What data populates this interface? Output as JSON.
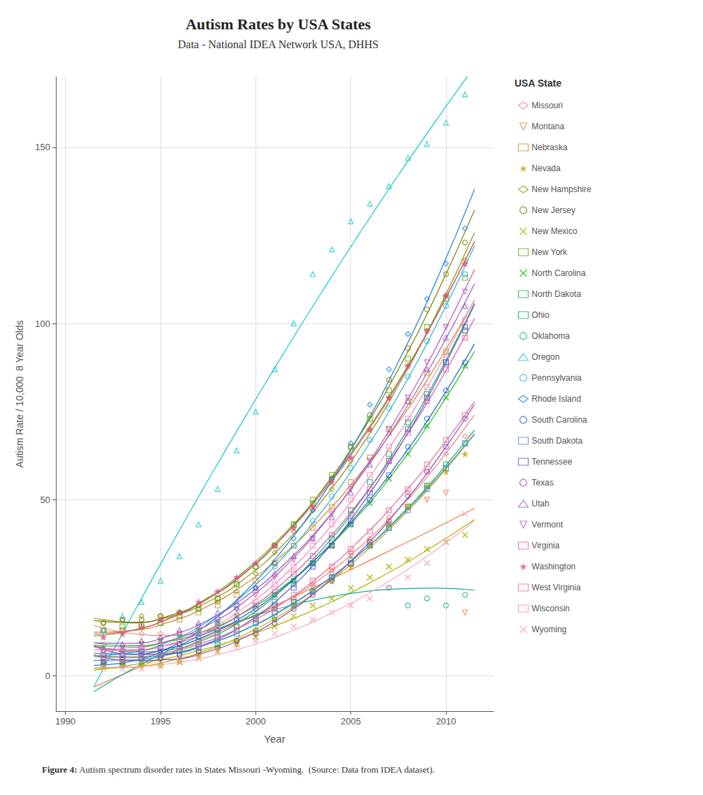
{
  "chart_data": {
    "type": "scatter",
    "title": "Autism Rates by USA States",
    "subtitle": "Data - National IDEA Network USA, DHHS",
    "caption": "Figure 4: Autism spectrum disorder rates in States Missouri -Wyoming.  (Source: Data from IDEA dataset).",
    "xlabel": "Year",
    "ylabel": "Autism Rate / 10,000  8 Year Olds",
    "legend_title": "USA State",
    "legend": "right",
    "grid": true,
    "xlim": [
      1989.5,
      2012.5
    ],
    "xticks": [
      1990,
      1995,
      2000,
      2005,
      2010
    ],
    "ylim": [
      -10,
      170
    ],
    "yticks": [
      0,
      50,
      100,
      150
    ],
    "x": [
      1992,
      1993,
      1994,
      1995,
      1996,
      1997,
      1998,
      1999,
      2000,
      2001,
      2002,
      2003,
      2004,
      2005,
      2006,
      2007,
      2008,
      2009,
      2010,
      2011
    ],
    "fit_x": [
      1991.5,
      1993.5,
      1995.5,
      1997.5,
      1999.5,
      2001.5,
      2003.5,
      2005.5,
      2007.5,
      2009.5,
      2011.5
    ],
    "series": [
      {
        "name": "Missouri",
        "color": "#f08080",
        "marker": "diamond",
        "values": [
          13,
          13,
          12,
          12,
          12,
          13,
          13,
          14,
          16,
          19,
          22,
          26,
          30,
          35,
          39,
          45,
          52,
          58,
          63,
          68
        ],
        "fit_values": [
          14.38,
          12.0,
          11.48,
          12.82,
          16.0,
          21.04,
          27.94,
          36.69,
          47.29,
          59.75,
          74.06
        ]
      },
      {
        "name": "Montana",
        "color": "#f07840",
        "marker": "triangle-down",
        "values": [
          4,
          4,
          4,
          5,
          5,
          6,
          7,
          9,
          12,
          16,
          21,
          25,
          29,
          34,
          38,
          43,
          48,
          50,
          52,
          18
        ],
        "fit_values": [
          -3.13,
          1.56,
          6.33,
          11.18,
          16.12,
          21.15,
          26.26,
          31.45,
          36.73,
          42.1,
          47.55
        ]
      },
      {
        "name": "Nebraska",
        "color": "#d08828",
        "marker": "square",
        "values": [
          13,
          13,
          14,
          15,
          16,
          18,
          20,
          23,
          27,
          32,
          37,
          42,
          48,
          55,
          62,
          70,
          78,
          86,
          92,
          98
        ],
        "fit_values": [
          12.38,
          12.88,
          15.36,
          19.82,
          26.27,
          34.71,
          45.12,
          57.52,
          71.9,
          88.27,
          106.62
        ]
      },
      {
        "name": "Nevada",
        "color": "#c8a800",
        "marker": "star",
        "values": [
          3,
          3,
          3,
          3,
          4,
          6,
          8,
          10,
          13,
          16,
          20,
          24,
          27,
          31,
          37,
          43,
          48,
          54,
          58,
          63
        ],
        "fit_values": [
          2.12,
          2.49,
          4.26,
          7.41,
          11.96,
          17.91,
          25.25,
          33.98,
          44.1,
          55.62,
          68.53
        ]
      },
      {
        "name": "New Hampshire",
        "color": "#909010",
        "marker": "diamond",
        "values": [
          15,
          16,
          17,
          17,
          18,
          19,
          21,
          24,
          29,
          35,
          41,
          47,
          53,
          61,
          70,
          79,
          88,
          98,
          108,
          118
        ],
        "fit_values": [
          16.42,
          15.27,
          16.81,
          21.03,
          27.94,
          37.54,
          49.82,
          64.79,
          82.44,
          102.78,
          125.8
        ]
      },
      {
        "name": "New Jersey",
        "color": "#787800",
        "marker": "circle",
        "values": [
          15,
          16,
          16,
          17,
          18,
          20,
          22,
          26,
          31,
          37,
          43,
          49,
          56,
          65,
          74,
          84,
          93,
          104,
          114,
          123
        ],
        "fit_values": [
          15.69,
          15.04,
          17.13,
          21.95,
          29.51,
          39.79,
          52.81,
          68.56,
          87.05,
          108.26,
          132.21
        ]
      },
      {
        "name": "New Mexico",
        "color": "#a8b800",
        "marker": "x",
        "values": [
          4,
          4,
          4,
          4,
          4,
          5,
          7,
          9,
          11,
          14,
          17,
          20,
          22,
          25,
          28,
          31,
          33,
          36,
          38,
          40
        ],
        "fit_values": [
          1.63,
          3.1,
          5.18,
          7.9,
          11.24,
          15.2,
          19.79,
          25.01,
          30.85,
          37.31,
          44.4
        ]
      },
      {
        "name": "New York",
        "color": "#58b010",
        "marker": "square",
        "values": [
          13,
          14,
          14,
          15,
          17,
          19,
          22,
          26,
          31,
          37,
          43,
          50,
          57,
          65,
          73,
          81,
          90,
          99,
          107,
          113
        ],
        "fit_values": [
          11.37,
          12.84,
          16.48,
          22.27,
          30.22,
          40.33,
          52.6,
          67.02,
          83.61,
          102.35,
          123.25
        ]
      },
      {
        "name": "North Carolina",
        "color": "#18c018",
        "marker": "x",
        "values": [
          8,
          8,
          9,
          10,
          11,
          13,
          15,
          17,
          20,
          23,
          27,
          32,
          37,
          43,
          49,
          56,
          63,
          71,
          79,
          88
        ],
        "fit_values": [
          9.38,
          8.6,
          9.83,
          13.07,
          18.32,
          25.58,
          34.86,
          46.15,
          59.46,
          74.78,
          92.1
        ]
      },
      {
        "name": "North Dakota",
        "color": "#18b048",
        "marker": "square",
        "values": [
          5,
          5,
          6,
          6,
          7,
          8,
          9,
          12,
          15,
          18,
          21,
          24,
          28,
          32,
          37,
          42,
          48,
          54,
          60,
          66
        ],
        "fit_values": [
          5.46,
          5.17,
          6.37,
          9.07,
          13.26,
          18.94,
          26.12,
          34.79,
          44.96,
          56.62,
          69.78
        ]
      },
      {
        "name": "Ohio",
        "color": "#10a868",
        "marker": "square",
        "values": [
          7,
          7,
          8,
          8,
          9,
          10,
          12,
          14,
          17,
          21,
          26,
          32,
          39,
          47,
          55,
          63,
          72,
          80,
          89,
          98
        ],
        "fit_values": [
          8.74,
          6.81,
          7.47,
          10.72,
          16.54,
          24.96,
          35.96,
          49.54,
          65.7,
          84.46,
          105.79
        ]
      },
      {
        "name": "Oklahoma",
        "color": "#10a898",
        "marker": "circle",
        "values": [
          3,
          3,
          4,
          5,
          6,
          7,
          8,
          10,
          13,
          16,
          20,
          24,
          28,
          33,
          37,
          25,
          20,
          22,
          20,
          23
        ],
        "fit_values": [
          -4.46,
          1.88,
          7.45,
          12.25,
          16.28,
          19.54,
          22.04,
          23.77,
          24.73,
          24.92,
          24.34
        ]
      },
      {
        "name": "Oregon",
        "color": "#10c8c8",
        "marker": "triangle-up",
        "values": [
          13,
          17,
          21,
          27,
          34,
          43,
          53,
          64,
          75,
          87,
          100,
          114,
          121,
          129,
          134,
          139,
          147,
          151,
          157,
          165
        ],
        "fit_values": [
          -3.02,
          17.06,
          36.58,
          55.56,
          73.98,
          91.85,
          109.16,
          125.93,
          142.14,
          157.8,
          172.9
        ]
      },
      {
        "name": "Pennsylvania",
        "color": "#28b0d0",
        "marker": "circle",
        "values": [
          6,
          7,
          8,
          9,
          11,
          13,
          16,
          20,
          25,
          31,
          37,
          44,
          51,
          59,
          67,
          76,
          85,
          95,
          105,
          114
        ],
        "fit_values": [
          5.77,
          6.64,
          9.9,
          15.54,
          23.58,
          34.01,
          46.83,
          62.05,
          79.65,
          99.64,
          122.03
        ]
      },
      {
        "name": "Rhode Island",
        "color": "#1878e0",
        "marker": "diamond",
        "values": [
          4,
          5,
          6,
          7,
          9,
          12,
          15,
          19,
          25,
          32,
          39,
          47,
          56,
          66,
          77,
          87,
          97,
          107,
          117,
          127
        ],
        "fit_values": [
          3.02,
          4.19,
          8.11,
          14.77,
          24.17,
          36.31,
          51.19,
          68.81,
          89.17,
          112.27,
          138.11
        ]
      },
      {
        "name": "South Carolina",
        "color": "#2858d8",
        "marker": "circle",
        "values": [
          5,
          6,
          7,
          8,
          9,
          11,
          13,
          16,
          19,
          23,
          27,
          32,
          37,
          43,
          50,
          57,
          65,
          73,
          81,
          89
        ],
        "fit_values": [
          6.45,
          6.17,
          7.9,
          11.65,
          17.41,
          25.18,
          34.97,
          46.77,
          60.58,
          76.41,
          94.25
        ]
      },
      {
        "name": "South Dakota",
        "color": "#4888e8",
        "marker": "square",
        "values": [
          4,
          4,
          5,
          6,
          7,
          8,
          10,
          12,
          15,
          18,
          21,
          24,
          28,
          32,
          37,
          42,
          47,
          53,
          59,
          66
        ],
        "fit_values": [
          4.41,
          4.55,
          6.09,
          9.03,
          13.36,
          19.09,
          26.22,
          34.75,
          44.67,
          55.99,
          68.72
        ]
      },
      {
        "name": "Tennessee",
        "color": "#5858c8",
        "marker": "square",
        "values": [
          6,
          6,
          7,
          7,
          8,
          9,
          11,
          13,
          16,
          20,
          25,
          31,
          37,
          44,
          52,
          61,
          70,
          79,
          89,
          99
        ],
        "fit_values": [
          8.5,
          6.07,
          6.34,
          9.3,
          14.95,
          23.3,
          34.34,
          48.08,
          64.52,
          83.64,
          105.47
        ]
      },
      {
        "name": "Texas",
        "color": "#8848b0",
        "marker": "circle",
        "values": [
          4,
          4,
          5,
          5,
          6,
          7,
          8,
          10,
          12,
          15,
          19,
          23,
          27,
          32,
          38,
          44,
          51,
          58,
          65,
          73
        ],
        "fit_values": [
          5.92,
          4.31,
          4.64,
          6.9,
          11.11,
          17.25,
          25.33,
          35.34,
          47.3,
          61.19,
          77.02
        ]
      },
      {
        "name": "Utah",
        "color": "#9858c0",
        "marker": "triangle-up",
        "values": [
          8,
          9,
          10,
          11,
          13,
          15,
          18,
          21,
          25,
          29,
          34,
          39,
          45,
          52,
          60,
          69,
          78,
          87,
          96,
          105
        ],
        "fit_values": [
          9.4,
          9.27,
          11.43,
          15.88,
          22.63,
          31.67,
          43.0,
          56.63,
          72.55,
          90.76,
          111.26
        ]
      },
      {
        "name": "Vermont",
        "color": "#b858b8",
        "marker": "triangle-down",
        "values": [
          7,
          8,
          9,
          10,
          12,
          14,
          16,
          19,
          23,
          28,
          33,
          39,
          46,
          53,
          61,
          70,
          79,
          89,
          99,
          109
        ],
        "fit_values": [
          8.73,
          8.15,
          10.07,
          14.49,
          21.41,
          30.82,
          42.73,
          57.14,
          74.04,
          93.45,
          115.34
        ]
      },
      {
        "name": "Virginia",
        "color": "#d858a8",
        "marker": "square",
        "values": [
          7,
          7,
          8,
          9,
          10,
          12,
          14,
          17,
          20,
          24,
          29,
          34,
          40,
          46,
          53,
          61,
          69,
          78,
          87,
          96
        ],
        "fit_values": [
          8.23,
          7.42,
          8.87,
          12.56,
          18.51,
          26.7,
          37.14,
          49.84,
          64.78,
          81.97,
          101.42
        ]
      },
      {
        "name": "Washington",
        "color": "#e84888",
        "marker": "star",
        "values": [
          11,
          12,
          14,
          16,
          18,
          21,
          24,
          28,
          32,
          37,
          42,
          48,
          55,
          62,
          70,
          79,
          88,
          98,
          108,
          117
        ],
        "fit_values": [
          11.86,
          12.99,
          16.34,
          21.93,
          29.73,
          39.76,
          52.01,
          66.48,
          83.18,
          102.11,
          123.25
        ]
      },
      {
        "name": "West Virginia",
        "color": "#e86898",
        "marker": "square",
        "values": [
          5,
          5,
          6,
          7,
          8,
          9,
          11,
          13,
          16,
          19,
          23,
          27,
          31,
          36,
          41,
          47,
          53,
          60,
          67,
          74
        ],
        "fit_values": [
          5.79,
          5.49,
          6.86,
          9.89,
          14.6,
          20.97,
          29.01,
          38.72,
          50.09,
          63.13,
          77.85
        ]
      },
      {
        "name": "Wisconsin",
        "color": "#f888b8",
        "marker": "square",
        "values": [
          7,
          7,
          8,
          9,
          10,
          12,
          14,
          17,
          21,
          26,
          31,
          37,
          43,
          50,
          57,
          65,
          73,
          82,
          91,
          101
        ],
        "fit_values": [
          7.51,
          7.14,
          9.06,
          13.26,
          19.76,
          28.54,
          39.61,
          52.97,
          68.62,
          86.55,
          106.77
        ]
      },
      {
        "name": "Wyoming",
        "color": "#f8a8c0",
        "marker": "x",
        "values": [
          2,
          2,
          2,
          3,
          4,
          5,
          7,
          8,
          10,
          12,
          14,
          16,
          18,
          20,
          22,
          25,
          28,
          32,
          38,
          46
        ],
        "fit_values": [
          2.44,
          2.53,
          3.52,
          5.42,
          8.23,
          11.94,
          16.55,
          22.07,
          28.5,
          35.83,
          44.06
        ]
      }
    ]
  }
}
